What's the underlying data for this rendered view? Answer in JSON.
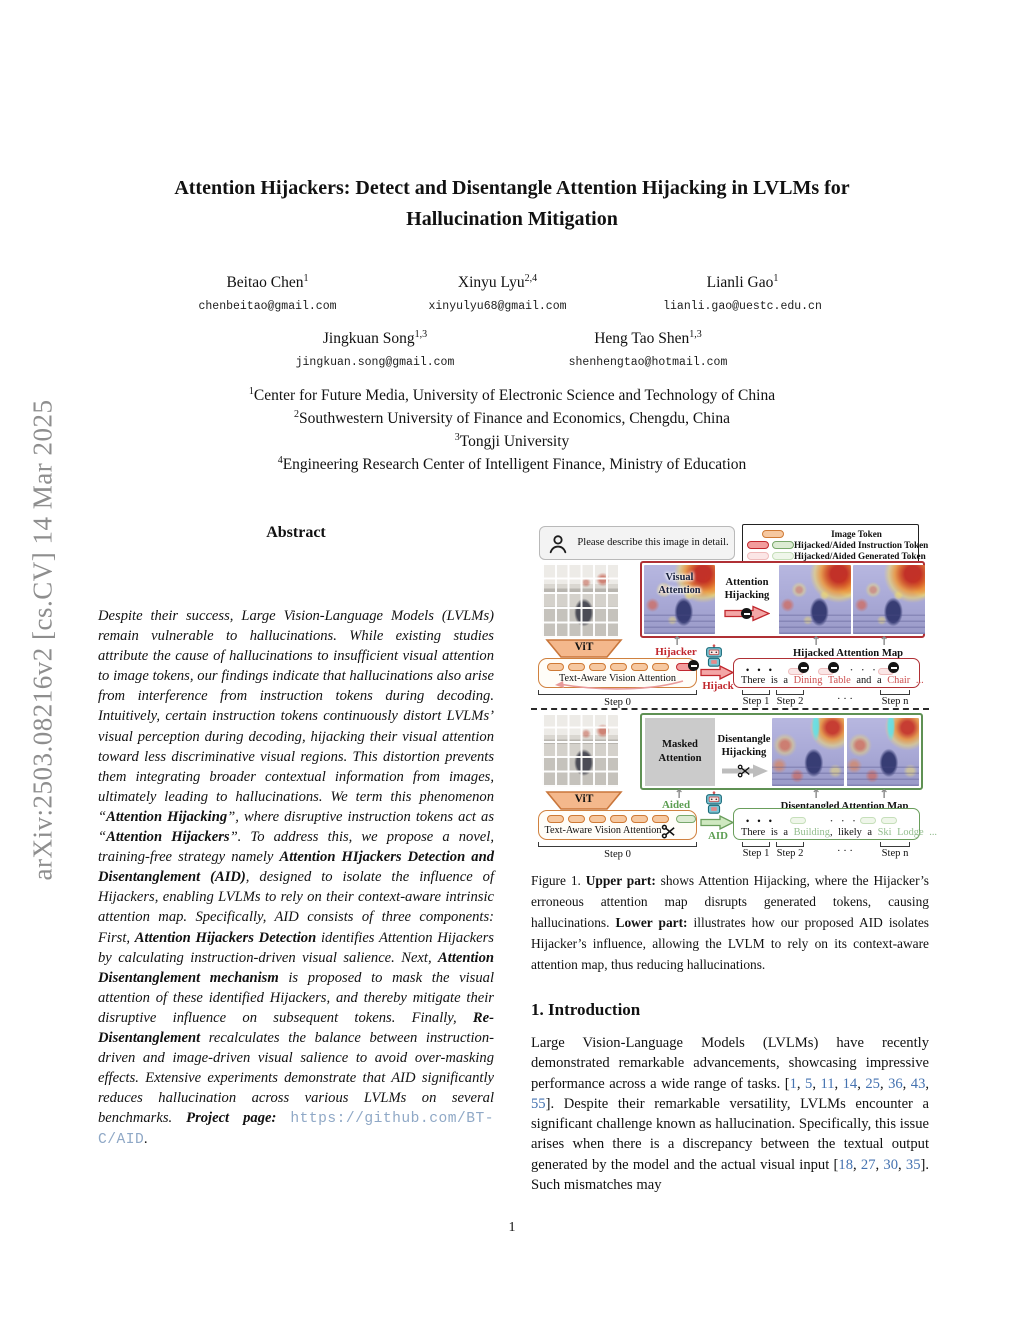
{
  "sidebar": {
    "arxiv_label": "arXiv:2503.08216v2  [cs.CV]  14 Mar 2025"
  },
  "title": {
    "line1": "Attention Hijackers: Detect and Disentangle Attention Hijacking in LVLMs for",
    "line2": "Hallucination Mitigation"
  },
  "authors": [
    {
      "name": "Beitao Chen",
      "sup": "1",
      "email": "chenbeitao@gmail.com"
    },
    {
      "name": "Xinyu Lyu",
      "sup": "2,4",
      "email": "xinyulyu68@gmail.com"
    },
    {
      "name": "Lianli Gao",
      "sup": "1",
      "email": "lianli.gao@uestc.edu.cn"
    },
    {
      "name": "Jingkuan Song",
      "sup": "1,3",
      "email": "jingkuan.song@gmail.com"
    },
    {
      "name": "Heng Tao Shen",
      "sup": "1,3",
      "email": "shenhengtao@hotmail.com"
    }
  ],
  "affiliations": [
    {
      "sup": "1",
      "text": "Center for Future Media, University of Electronic Science and Technology of China"
    },
    {
      "sup": "2",
      "text": "Southwestern University of Finance and Economics, Chengdu, China"
    },
    {
      "sup": "3",
      "text": "Tongji University"
    },
    {
      "sup": "4",
      "text": "Engineering Research Center of Intelligent Finance, Ministry of Education"
    }
  ],
  "abstract": {
    "heading": "Abstract",
    "segments": [
      {
        "t": "Despite their success, Large Vision-Language Models (LVLMs) remain vulnerable to hallucinations. While existing studies attribute the cause of hallucinations to insufficient visual attention to image tokens, our findings indicate that hallucinations also arise from interference from instruction tokens during decoding. Intuitively, certain instruction tokens continuously distort LVLMs’ visual perception during decoding, hijacking their visual attention toward less discriminative visual regions. This distortion prevents them integrating broader contextual information from images, ultimately leading to hallucinations. We term this phenomenon “"
      },
      {
        "t": "Attention Hijacking",
        "c": "b"
      },
      {
        "t": "”, where disruptive instruction tokens act as “"
      },
      {
        "t": "Attention Hijackers",
        "c": "b"
      },
      {
        "t": "”.  To address this, we propose a novel, training-free strategy namely "
      },
      {
        "t": "Attention HIjackers Detection and Disentanglement (AID)",
        "c": "b"
      },
      {
        "t": ", designed to isolate the influence of Hijackers, enabling LVLMs to rely on their context-aware intrinsic attention map. Specifically, AID consists of three components: First, "
      },
      {
        "t": "Attention Hijackers Detection",
        "c": "b"
      },
      {
        "t": " identifies Attention Hijackers by calculating instruction-driven visual salience. Next, "
      },
      {
        "t": "Attention Disentanglement mechanism",
        "c": "b"
      },
      {
        "t": " is proposed to mask the visual attention of these identified Hijackers, and thereby mitigate their disruptive influence on subsequent tokens. Finally, "
      },
      {
        "t": "Re-Disentanglement",
        "c": "b"
      },
      {
        "t": " recalculates the balance between instruction-driven and image-driven visual salience to avoid over-masking effects. Extensive experiments demonstrate that AID significantly reduces hallucination across various LVLMs on several benchmarks. "
      },
      {
        "t": "Project page: ",
        "c": "b"
      },
      {
        "t": "https://github.com/BT-C/AID",
        "c": "link"
      },
      {
        "t": "."
      }
    ]
  },
  "figure": {
    "prompt": "Please describe this image in detail.",
    "legend": [
      {
        "label": "Image Token"
      },
      {
        "label": "Hijacked/Aided Instruction Token"
      },
      {
        "label": "Hijacked/Aided Generated Token"
      }
    ],
    "upper": {
      "visual_attention": "Visual Attention",
      "attention_hijacking": "Attention Hijacking",
      "vit": "ViT",
      "hijacker": "Hijacker",
      "text_aware": "Text-Aware Vision Attention",
      "hijack": "Hijack",
      "map_label": "Hijacked Attention Map",
      "sentence": [
        {
          "t": "There is a "
        },
        {
          "t": "Dining Table",
          "c": "w-red"
        },
        {
          "t": " and a "
        },
        {
          "t": "Chair",
          "c": "w-red"
        },
        {
          "t": " ...",
          "c": "w-red"
        }
      ]
    },
    "lower": {
      "masked": "Masked Attention",
      "disentangle": "Disentangle Hijacking",
      "vit": "ViT",
      "aided": "Aided",
      "text_aware": "Text-Aware Vision Attention",
      "aid": "AID",
      "map_label": "Disentangled Attention Map",
      "sentence": [
        {
          "t": "There is a "
        },
        {
          "t": "Building",
          "c": "w-green"
        },
        {
          "t": ", likely a "
        },
        {
          "t": "Ski Lodge",
          "c": "w-green"
        },
        {
          "t": " ...",
          "c": "w-green"
        }
      ]
    },
    "steps": {
      "s0": "Step 0",
      "s1": "Step 1",
      "s2": "Step 2",
      "dots": "· · ·",
      "sn": "Step n"
    },
    "caption": [
      {
        "t": "Figure 1.  "
      },
      {
        "t": "Upper part:",
        "c": "b"
      },
      {
        "t": " shows Attention Hijacking, where the Hijacker’s erroneous attention map disrupts generated tokens, causing hallucinations.  "
      },
      {
        "t": "Lower part:",
        "c": "b"
      },
      {
        "t": " illustrates how our proposed AID isolates Hijacker’s influence, allowing the LVLM to rely on its context-aware attention map, thus reducing hallucinations."
      }
    ]
  },
  "intro": {
    "heading": "1. Introduction",
    "segments": [
      {
        "t": "Large Vision-Language Models (LVLMs) have recently demonstrated remarkable advancements, showcasing impressive performance across a wide range of tasks. ["
      },
      {
        "t": "1",
        "c": "cite"
      },
      {
        "t": ", "
      },
      {
        "t": "5",
        "c": "cite"
      },
      {
        "t": ", "
      },
      {
        "t": "11",
        "c": "cite"
      },
      {
        "t": ", "
      },
      {
        "t": "14",
        "c": "cite"
      },
      {
        "t": ", "
      },
      {
        "t": "25",
        "c": "cite"
      },
      {
        "t": ", "
      },
      {
        "t": "36",
        "c": "cite"
      },
      {
        "t": ", "
      },
      {
        "t": "43",
        "c": "cite"
      },
      {
        "t": ", "
      },
      {
        "t": "55",
        "c": "cite"
      },
      {
        "t": "]. Despite their remarkable versatility, LVLMs encounter a significant challenge known as hallucination. Specifically, this issue arises when there is a discrepancy between the textual output generated by the model and the actual visual input ["
      },
      {
        "t": "18",
        "c": "cite"
      },
      {
        "t": ", "
      },
      {
        "t": "27",
        "c": "cite"
      },
      {
        "t": ", "
      },
      {
        "t": "30",
        "c": "cite"
      },
      {
        "t": ", "
      },
      {
        "t": "35",
        "c": "cite"
      },
      {
        "t": "]. Such mismatches may"
      }
    ]
  },
  "page_number": "1"
}
